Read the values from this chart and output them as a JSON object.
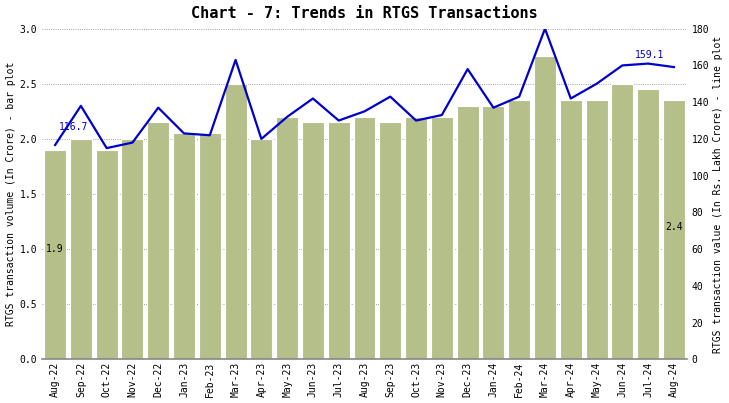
{
  "title": "Chart - 7: Trends in RTGS Transactions",
  "categories": [
    "Aug-22",
    "Sep-22",
    "Oct-22",
    "Nov-22",
    "Dec-22",
    "Jan-23",
    "Feb-23",
    "Mar-23",
    "Apr-23",
    "May-23",
    "Jun-23",
    "Jul-23",
    "Aug-23",
    "Sep-23",
    "Oct-23",
    "Nov-23",
    "Dec-23",
    "Jan-24",
    "Feb-24",
    "Mar-24",
    "Apr-24",
    "May-24",
    "Jun-24",
    "Jul-24",
    "Aug-24"
  ],
  "bar_values": [
    1.9,
    2.0,
    1.9,
    2.0,
    2.15,
    2.05,
    2.05,
    2.5,
    2.0,
    2.2,
    2.15,
    2.15,
    2.2,
    2.15,
    2.2,
    2.2,
    2.3,
    2.3,
    2.35,
    2.75,
    2.35,
    2.35,
    2.5,
    2.45,
    2.35
  ],
  "line_values": [
    116.7,
    138,
    115,
    118,
    137,
    123,
    122,
    163,
    120,
    132,
    142,
    130,
    135,
    143,
    130,
    133,
    158,
    137,
    143,
    180,
    142,
    150,
    160,
    161,
    159.1
  ],
  "bar_color": "#b5bf8a",
  "line_color": "#0000cc",
  "ylabel_left": "RTGS transaction volume (In Crore) - bar plot",
  "ylabel_right": "RTGS transaction value (In Rs. Lakh Crore) - line plot",
  "ylim_left": [
    0.0,
    3.0
  ],
  "ylim_right": [
    0,
    180
  ],
  "yticks_left": [
    0.0,
    0.5,
    1.0,
    1.5,
    2.0,
    2.5,
    3.0
  ],
  "yticks_right": [
    0,
    20,
    40,
    60,
    80,
    100,
    120,
    140,
    160,
    180
  ],
  "annotation_first_bar": "1.9",
  "annotation_last_bar": "2.4",
  "annotation_first_line": "116.7",
  "annotation_last_line": "159.1",
  "title_fontsize": 11,
  "axis_label_fontsize": 7,
  "tick_fontsize": 7,
  "annotation_fontsize": 7,
  "bar_width": 0.85,
  "figsize": [
    7.29,
    4.03
  ],
  "dpi": 100
}
